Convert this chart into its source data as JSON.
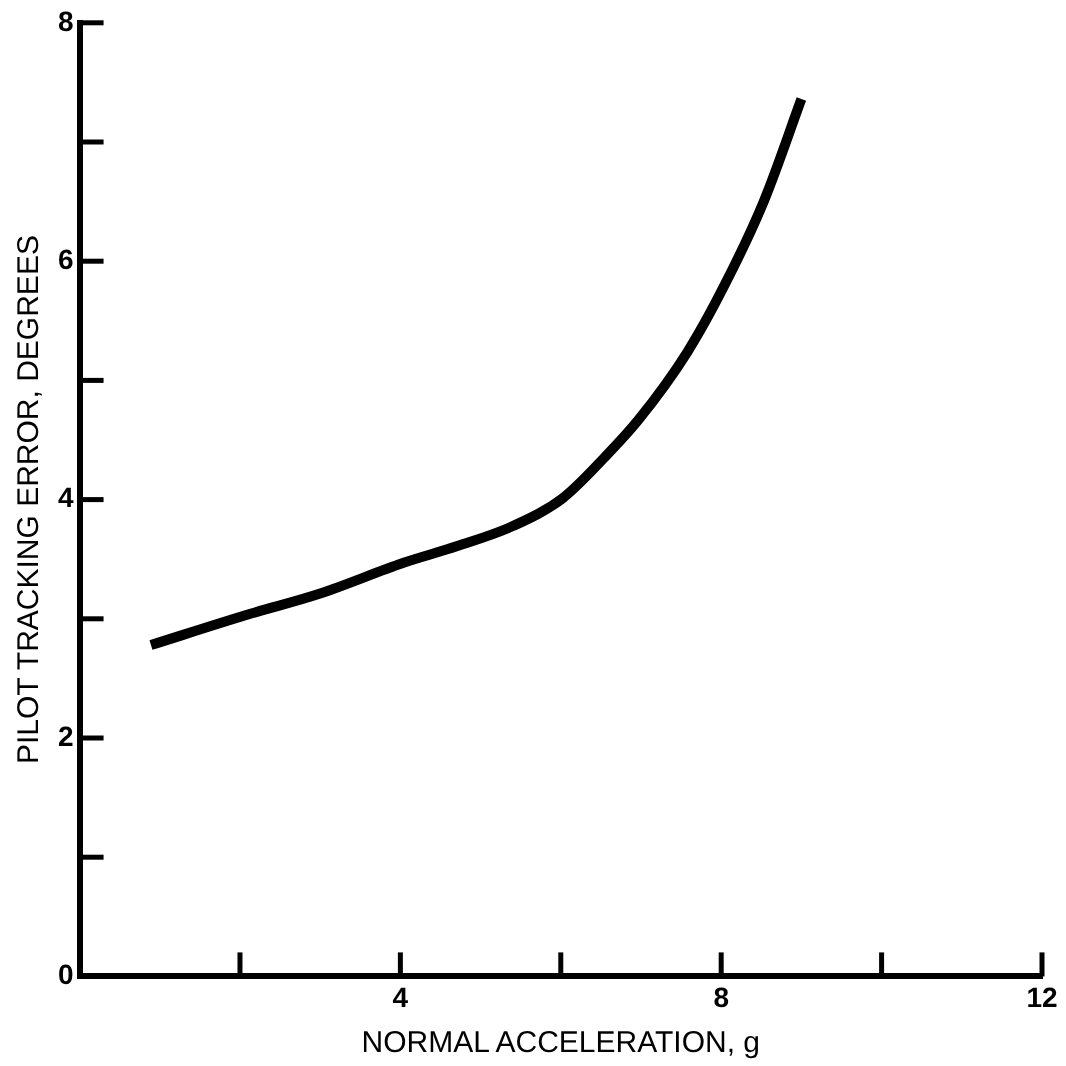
{
  "chart_data": {
    "type": "line",
    "xlabel": "NORMAL ACCELERATION, g",
    "ylabel": "PILOT TRACKING ERROR, DEGREES",
    "x": [
      0.89,
      2.12,
      2.99,
      4.04,
      4.71,
      5.41,
      6.02,
      6.54,
      6.97,
      7.58,
      8.05,
      8.53,
      9.0
    ],
    "series": [
      {
        "color": "#000000",
        "values": [
          2.78,
          3.04,
          3.21,
          3.47,
          3.61,
          3.78,
          4.01,
          4.35,
          4.67,
          5.24,
          5.81,
          6.5,
          7.36
        ]
      }
    ],
    "xlim": [
      0,
      12
    ],
    "ylim": [
      0,
      8
    ],
    "xticks": [
      {
        "value": 2,
        "label": null
      },
      4,
      {
        "value": 6,
        "label": null
      },
      8,
      {
        "value": 10,
        "label": null
      },
      12
    ],
    "yticks": [
      0,
      {
        "value": 1,
        "label": null
      },
      2,
      {
        "value": 3,
        "label": null
      },
      4,
      {
        "value": 5,
        "label": null
      },
      6,
      {
        "value": 7,
        "label": null
      },
      8
    ],
    "legend": false,
    "marker": "none",
    "line_style": "solid"
  }
}
